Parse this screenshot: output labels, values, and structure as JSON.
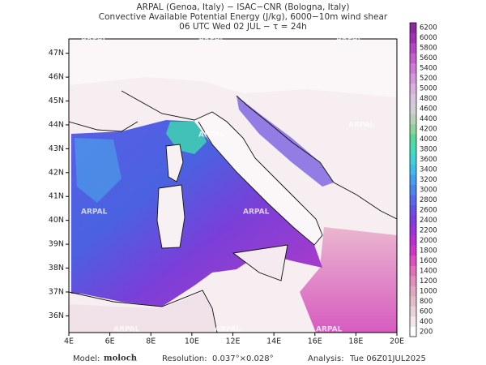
{
  "header": {
    "line1": "ARPAL (Genoa, Italy)  −  ISAC−CNR (Bologna, Italy)",
    "line2": "Convective Available Potential Energy (J/kg), 6000−10m wind shear",
    "line3": "06 UTC Wed 02 JUL  −  τ = 24h"
  },
  "map": {
    "watermark": "ARPAL",
    "xlim": [
      4,
      20
    ],
    "ylim": [
      35.3,
      47.6
    ],
    "xticks": [
      {
        "value": 4,
        "label": "4E"
      },
      {
        "value": 6,
        "label": "6E"
      },
      {
        "value": 8,
        "label": "8E"
      },
      {
        "value": 10,
        "label": "10E"
      },
      {
        "value": 12,
        "label": "12E"
      },
      {
        "value": 14,
        "label": "14E"
      },
      {
        "value": 16,
        "label": "16E"
      },
      {
        "value": 18,
        "label": "18E"
      },
      {
        "value": 20,
        "label": "20E"
      }
    ],
    "yticks": [
      {
        "value": 36,
        "label": "36N"
      },
      {
        "value": 37,
        "label": "37N"
      },
      {
        "value": 38,
        "label": "38N"
      },
      {
        "value": 39,
        "label": "39N"
      },
      {
        "value": 40,
        "label": "40N"
      },
      {
        "value": 41,
        "label": "41N"
      },
      {
        "value": 42,
        "label": "42N"
      },
      {
        "value": 43,
        "label": "43N"
      },
      {
        "value": 44,
        "label": "44N"
      },
      {
        "value": 45,
        "label": "45N"
      },
      {
        "value": 46,
        "label": "46N"
      },
      {
        "value": 47,
        "label": "47N"
      }
    ]
  },
  "colorbar": {
    "levels": [
      200,
      400,
      600,
      800,
      1000,
      1200,
      1400,
      1600,
      1800,
      2000,
      2200,
      2400,
      2600,
      2800,
      3000,
      3200,
      3400,
      3600,
      3800,
      4000,
      4200,
      4400,
      4600,
      4800,
      5000,
      5200,
      5400,
      5600,
      5800,
      6000,
      6200
    ],
    "colors": [
      "#ffffff",
      "#f3e6ec",
      "#ebd1dc",
      "#e4bccd",
      "#e0a9c2",
      "#e28fbd",
      "#e56fbb",
      "#e04fc0",
      "#d236c8",
      "#b92fd0",
      "#9a33d8",
      "#7d3ddf",
      "#6a4ee6",
      "#5b67ec",
      "#4d84ee",
      "#43a0ee",
      "#3fbcea",
      "#40d2d8",
      "#45dcb8",
      "#5ad89a",
      "#8cd49a",
      "#b8d0b8",
      "#d0cfd6",
      "#d8c4e0",
      "#d9b0e0",
      "#d597dc",
      "#cf7ad6",
      "#c55ecf",
      "#b644c4",
      "#a030b4",
      "#8a2a9c"
    ]
  },
  "footer": {
    "model_label": "Model:",
    "model": "moloch",
    "resolution_label": "Resolution:",
    "resolution": "0.037°×0.028°",
    "analysis_label": "Analysis:",
    "analysis": "Tue 06Z01JUL2025"
  }
}
